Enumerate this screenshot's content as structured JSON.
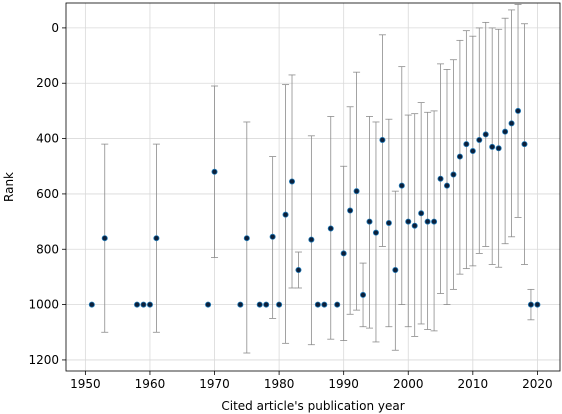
{
  "chart_data": {
    "type": "scatter",
    "title": "",
    "xlabel": "Cited article's publication year",
    "ylabel": "Rank",
    "xlim": [
      1947,
      2023.5
    ],
    "ylim": [
      1240,
      -90
    ],
    "y_inverted": true,
    "grid": true,
    "xticks": [
      1950,
      1960,
      1970,
      1980,
      1990,
      2000,
      2010,
      2020
    ],
    "yticks": [
      0,
      200,
      400,
      600,
      800,
      1000,
      1200
    ],
    "colors": {
      "point": "#0b1f3a",
      "point_edge": "#1f77b4",
      "errorbar": "#8c8c8c",
      "grid": "#d9d9d9"
    },
    "points": [
      {
        "x": 1951,
        "y": 1000,
        "low": null,
        "high": null
      },
      {
        "x": 1953,
        "y": 760,
        "low": 420,
        "high": 1100
      },
      {
        "x": 1958,
        "y": 1000,
        "low": null,
        "high": null
      },
      {
        "x": 1959,
        "y": 1000,
        "low": null,
        "high": null
      },
      {
        "x": 1960,
        "y": 1000,
        "low": null,
        "high": null
      },
      {
        "x": 1961,
        "y": 760,
        "low": 420,
        "high": 1100
      },
      {
        "x": 1969,
        "y": 1000,
        "low": null,
        "high": null
      },
      {
        "x": 1970,
        "y": 520,
        "low": 210,
        "high": 830
      },
      {
        "x": 1974,
        "y": 1000,
        "low": null,
        "high": null
      },
      {
        "x": 1975,
        "y": 760,
        "low": 340,
        "high": 1175
      },
      {
        "x": 1977,
        "y": 1000,
        "low": null,
        "high": null
      },
      {
        "x": 1978,
        "y": 1000,
        "low": null,
        "high": null
      },
      {
        "x": 1979,
        "y": 755,
        "low": 465,
        "high": 1050
      },
      {
        "x": 1980,
        "y": 1000,
        "low": null,
        "high": null
      },
      {
        "x": 1981,
        "y": 675,
        "low": 205,
        "high": 1140
      },
      {
        "x": 1982,
        "y": 555,
        "low": 170,
        "high": 940
      },
      {
        "x": 1983,
        "y": 875,
        "low": 810,
        "high": 940
      },
      {
        "x": 1985,
        "y": 765,
        "low": 390,
        "high": 1145
      },
      {
        "x": 1986,
        "y": 1000,
        "low": null,
        "high": null
      },
      {
        "x": 1987,
        "y": 1000,
        "low": null,
        "high": null
      },
      {
        "x": 1988,
        "y": 725,
        "low": 320,
        "high": 1125
      },
      {
        "x": 1989,
        "y": 1000,
        "low": null,
        "high": null
      },
      {
        "x": 1990,
        "y": 815,
        "low": 500,
        "high": 1130
      },
      {
        "x": 1991,
        "y": 660,
        "low": 285,
        "high": 1035
      },
      {
        "x": 1992,
        "y": 590,
        "low": 160,
        "high": 1020
      },
      {
        "x": 1993,
        "y": 965,
        "low": 850,
        "high": 1080
      },
      {
        "x": 1994,
        "y": 700,
        "low": 320,
        "high": 1085
      },
      {
        "x": 1995,
        "y": 740,
        "low": 340,
        "high": 1135
      },
      {
        "x": 1996,
        "y": 405,
        "low": 25,
        "high": 790
      },
      {
        "x": 1997,
        "y": 705,
        "low": 330,
        "high": 1080
      },
      {
        "x": 1998,
        "y": 875,
        "low": 590,
        "high": 1165
      },
      {
        "x": 1999,
        "y": 570,
        "low": 140,
        "high": 1000
      },
      {
        "x": 2000,
        "y": 700,
        "low": 315,
        "high": 1080
      },
      {
        "x": 2001,
        "y": 715,
        "low": 310,
        "high": 1115
      },
      {
        "x": 2002,
        "y": 670,
        "low": 270,
        "high": 1070
      },
      {
        "x": 2003,
        "y": 700,
        "low": 305,
        "high": 1090
      },
      {
        "x": 2004,
        "y": 700,
        "low": 300,
        "high": 1095
      },
      {
        "x": 2005,
        "y": 545,
        "low": 130,
        "high": 960
      },
      {
        "x": 2006,
        "y": 570,
        "low": 150,
        "high": 1000
      },
      {
        "x": 2007,
        "y": 530,
        "low": 115,
        "high": 945
      },
      {
        "x": 2008,
        "y": 465,
        "low": 45,
        "high": 890
      },
      {
        "x": 2009,
        "y": 420,
        "low": 10,
        "high": 870
      },
      {
        "x": 2010,
        "y": 445,
        "low": 30,
        "high": 860
      },
      {
        "x": 2011,
        "y": 405,
        "low": 0,
        "high": 815
      },
      {
        "x": 2012,
        "y": 385,
        "low": -20,
        "high": 790
      },
      {
        "x": 2013,
        "y": 430,
        "low": 0,
        "high": 855
      },
      {
        "x": 2014,
        "y": 435,
        "low": 5,
        "high": 865
      },
      {
        "x": 2015,
        "y": 375,
        "low": -35,
        "high": 780
      },
      {
        "x": 2016,
        "y": 345,
        "low": -65,
        "high": 755
      },
      {
        "x": 2017,
        "y": 300,
        "low": -85,
        "high": 685
      },
      {
        "x": 2018,
        "y": 420,
        "low": -15,
        "high": 855
      },
      {
        "x": 2019,
        "y": 1000,
        "low": 945,
        "high": 1055
      },
      {
        "x": 2020,
        "y": 1000,
        "low": null,
        "high": null
      }
    ]
  }
}
